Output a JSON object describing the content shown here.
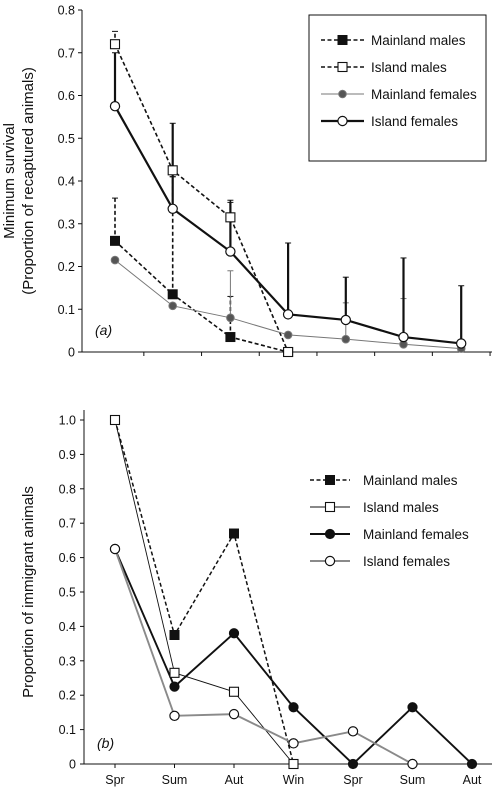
{
  "chart_data": [
    {
      "type": "line",
      "panel_label": "(a)",
      "ylabel_line1": "Minimum survival",
      "ylabel_line2": "(Proportion of recaptured animals)",
      "ylim": [
        0,
        0.8
      ],
      "yticks": [
        "0",
        "0.1",
        "0.2",
        "0.3",
        "0.4",
        "0.5",
        "0.6",
        "0.7",
        "0.8"
      ],
      "legend_position": "top-right",
      "series": [
        {
          "name": "Mainland males",
          "x": [
            0,
            1,
            2,
            3
          ],
          "values": [
            0.26,
            0.135,
            0.035,
            0.0
          ],
          "error_upper": [
            0.36,
            0.41,
            0.13,
            null
          ],
          "color": "#111111",
          "dashed": true,
          "marker": "square-filled",
          "width": 1.6
        },
        {
          "name": "Island males",
          "x": [
            0,
            1,
            2,
            3
          ],
          "values": [
            0.72,
            0.425,
            0.315,
            0.0
          ],
          "error_upper": [
            0.75,
            0.41,
            0.355,
            null
          ],
          "color": "#111111",
          "dashed": true,
          "marker": "square-open",
          "width": 1.6
        },
        {
          "name": "Mainland females",
          "x": [
            0,
            1,
            2,
            3,
            4,
            5,
            6
          ],
          "values": [
            0.215,
            0.108,
            0.08,
            0.04,
            0.03,
            0.018,
            0.008
          ],
          "error_upper": [
            null,
            null,
            0.19,
            null,
            0.115,
            0.125,
            null
          ],
          "color": "#777777",
          "dashed": false,
          "marker": "dot-gray",
          "width": 1.0
        },
        {
          "name": "Island females",
          "x": [
            0,
            1,
            2,
            3,
            4,
            5,
            6
          ],
          "values": [
            0.575,
            0.335,
            0.235,
            0.088,
            0.075,
            0.035,
            0.02
          ],
          "error_upper": [
            0.7,
            0.535,
            0.35,
            0.255,
            0.175,
            0.22,
            0.155
          ],
          "color": "#111111",
          "dashed": false,
          "marker": "circle-open",
          "width": 2.2
        }
      ]
    },
    {
      "type": "line",
      "panel_label": "(b)",
      "ylabel": "Proportion of immigrant animals",
      "categories": [
        "Spr",
        "Sum",
        "Aut",
        "Win",
        "Spr",
        "Sum",
        "Aut"
      ],
      "ylim": [
        0,
        1.0
      ],
      "yticks": [
        "0",
        "0.1",
        "0.2",
        "0.3",
        "0.4",
        "0.5",
        "0.6",
        "0.7",
        "0.8",
        "0.9",
        "1.0"
      ],
      "legend_position": "right",
      "series": [
        {
          "name": "Mainland males",
          "x": [
            0,
            1,
            2,
            3
          ],
          "values": [
            1.0,
            0.375,
            0.67,
            0.0
          ],
          "color": "#111111",
          "dashed": true,
          "marker": "square-filled",
          "width": 1.5
        },
        {
          "name": "Island males",
          "x": [
            0,
            1,
            2,
            3
          ],
          "values": [
            1.0,
            0.265,
            0.21,
            0.0
          ],
          "color": "#111111",
          "dashed": false,
          "marker": "square-open",
          "width": 0.9
        },
        {
          "name": "Mainland females",
          "x": [
            0,
            1,
            2,
            3,
            4,
            5,
            6
          ],
          "values": [
            0.625,
            0.225,
            0.38,
            0.165,
            0.0,
            0.165,
            0.0
          ],
          "color": "#111111",
          "dashed": false,
          "marker": "circle-filled",
          "width": 1.9
        },
        {
          "name": "Island females",
          "x": [
            0,
            1,
            2,
            3,
            4,
            5
          ],
          "values": [
            0.625,
            0.14,
            0.145,
            0.06,
            0.095,
            0.0
          ],
          "color": "#8a8a8a",
          "dashed": false,
          "marker": "circle-open",
          "width": 1.9
        }
      ]
    }
  ]
}
